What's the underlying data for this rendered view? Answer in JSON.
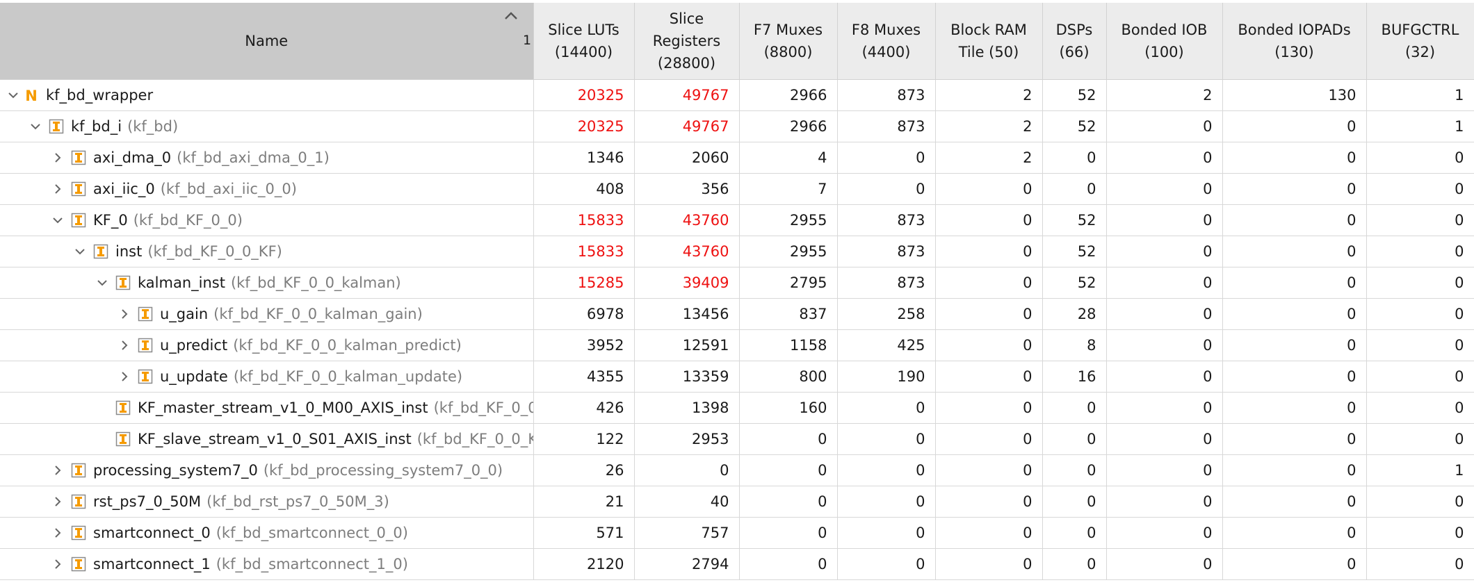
{
  "columns": [
    {
      "label": "Name",
      "sort_order": "1"
    },
    {
      "label": "Slice LUTs (14400)"
    },
    {
      "label": "Slice Registers (28800)"
    },
    {
      "label": "F7 Muxes (8800)"
    },
    {
      "label": "F8 Muxes (4400)"
    },
    {
      "label": "Block RAM Tile (50)"
    },
    {
      "label": "DSPs (66)"
    },
    {
      "label": "Bonded IOB (100)"
    },
    {
      "label": "Bonded IOPADs (130)"
    },
    {
      "label": "BUFGCTRL (32)"
    }
  ],
  "colors": {
    "over_utilized": "#ee1111",
    "header_bg": "#ececec",
    "sorted_header_bg": "#c9c9c9",
    "icon_orange": "#f59b00"
  },
  "rows": [
    {
      "depth": 0,
      "expander": "expanded",
      "icon": "netlist-top-icon",
      "instance": "kf_bd_wrapper",
      "ref": "",
      "values": [
        "20325",
        "49767",
        "2966",
        "873",
        "2",
        "52",
        "2",
        "130",
        "1"
      ],
      "over": [
        true,
        true
      ]
    },
    {
      "depth": 1,
      "expander": "expanded",
      "icon": "hier-cell-icon",
      "instance": "kf_bd_i",
      "ref": "(kf_bd)",
      "values": [
        "20325",
        "49767",
        "2966",
        "873",
        "2",
        "52",
        "0",
        "0",
        "1"
      ],
      "over": [
        true,
        true
      ]
    },
    {
      "depth": 2,
      "expander": "collapsed",
      "icon": "hier-cell-icon",
      "instance": "axi_dma_0",
      "ref": "(kf_bd_axi_dma_0_1)",
      "values": [
        "1346",
        "2060",
        "4",
        "0",
        "2",
        "0",
        "0",
        "0",
        "0"
      ],
      "over": [
        false,
        false
      ]
    },
    {
      "depth": 2,
      "expander": "collapsed",
      "icon": "hier-cell-icon",
      "instance": "axi_iic_0",
      "ref": "(kf_bd_axi_iic_0_0)",
      "values": [
        "408",
        "356",
        "7",
        "0",
        "0",
        "0",
        "0",
        "0",
        "0"
      ],
      "over": [
        false,
        false
      ]
    },
    {
      "depth": 2,
      "expander": "expanded",
      "icon": "hier-cell-icon",
      "instance": "KF_0",
      "ref": "(kf_bd_KF_0_0)",
      "values": [
        "15833",
        "43760",
        "2955",
        "873",
        "0",
        "52",
        "0",
        "0",
        "0"
      ],
      "over": [
        true,
        true
      ]
    },
    {
      "depth": 3,
      "expander": "expanded",
      "icon": "hier-cell-icon",
      "instance": "inst",
      "ref": "(kf_bd_KF_0_0_KF)",
      "values": [
        "15833",
        "43760",
        "2955",
        "873",
        "0",
        "52",
        "0",
        "0",
        "0"
      ],
      "over": [
        true,
        true
      ]
    },
    {
      "depth": 4,
      "expander": "expanded",
      "icon": "hier-cell-icon",
      "instance": "kalman_inst",
      "ref": "(kf_bd_KF_0_0_kalman)",
      "values": [
        "15285",
        "39409",
        "2795",
        "873",
        "0",
        "52",
        "0",
        "0",
        "0"
      ],
      "over": [
        true,
        true
      ]
    },
    {
      "depth": 5,
      "expander": "collapsed",
      "icon": "hier-cell-icon",
      "instance": "u_gain",
      "ref": "(kf_bd_KF_0_0_kalman_gain)",
      "values": [
        "6978",
        "13456",
        "837",
        "258",
        "0",
        "28",
        "0",
        "0",
        "0"
      ],
      "over": [
        false,
        false
      ]
    },
    {
      "depth": 5,
      "expander": "collapsed",
      "icon": "hier-cell-icon",
      "instance": "u_predict",
      "ref": "(kf_bd_KF_0_0_kalman_predict)",
      "values": [
        "3952",
        "12591",
        "1158",
        "425",
        "0",
        "8",
        "0",
        "0",
        "0"
      ],
      "over": [
        false,
        false
      ]
    },
    {
      "depth": 5,
      "expander": "collapsed",
      "icon": "hier-cell-icon",
      "instance": "u_update",
      "ref": "(kf_bd_KF_0_0_kalman_update)",
      "values": [
        "4355",
        "13359",
        "800",
        "190",
        "0",
        "16",
        "0",
        "0",
        "0"
      ],
      "over": [
        false,
        false
      ]
    },
    {
      "depth": 4,
      "expander": "none",
      "icon": "hier-cell-icon",
      "instance": "KF_master_stream_v1_0_M00_AXIS_inst",
      "ref": "(kf_bd_KF_0_0",
      "values": [
        "426",
        "1398",
        "160",
        "0",
        "0",
        "0",
        "0",
        "0",
        "0"
      ],
      "over": [
        false,
        false
      ]
    },
    {
      "depth": 4,
      "expander": "none",
      "icon": "hier-cell-icon",
      "instance": "KF_slave_stream_v1_0_S01_AXIS_inst",
      "ref": "(kf_bd_KF_0_0_K",
      "values": [
        "122",
        "2953",
        "0",
        "0",
        "0",
        "0",
        "0",
        "0",
        "0"
      ],
      "over": [
        false,
        false
      ]
    },
    {
      "depth": 2,
      "expander": "collapsed",
      "icon": "hier-cell-icon",
      "instance": "processing_system7_0",
      "ref": "(kf_bd_processing_system7_0_0)",
      "values": [
        "26",
        "0",
        "0",
        "0",
        "0",
        "0",
        "0",
        "0",
        "1"
      ],
      "over": [
        false,
        false
      ]
    },
    {
      "depth": 2,
      "expander": "collapsed",
      "icon": "hier-cell-icon",
      "instance": "rst_ps7_0_50M",
      "ref": "(kf_bd_rst_ps7_0_50M_3)",
      "values": [
        "21",
        "40",
        "0",
        "0",
        "0",
        "0",
        "0",
        "0",
        "0"
      ],
      "over": [
        false,
        false
      ]
    },
    {
      "depth": 2,
      "expander": "collapsed",
      "icon": "hier-cell-icon",
      "instance": "smartconnect_0",
      "ref": "(kf_bd_smartconnect_0_0)",
      "values": [
        "571",
        "757",
        "0",
        "0",
        "0",
        "0",
        "0",
        "0",
        "0"
      ],
      "over": [
        false,
        false
      ]
    },
    {
      "depth": 2,
      "expander": "collapsed",
      "icon": "hier-cell-icon",
      "instance": "smartconnect_1",
      "ref": "(kf_bd_smartconnect_1_0)",
      "values": [
        "2120",
        "2794",
        "0",
        "0",
        "0",
        "0",
        "0",
        "0",
        "0"
      ],
      "over": [
        false,
        false
      ]
    }
  ]
}
